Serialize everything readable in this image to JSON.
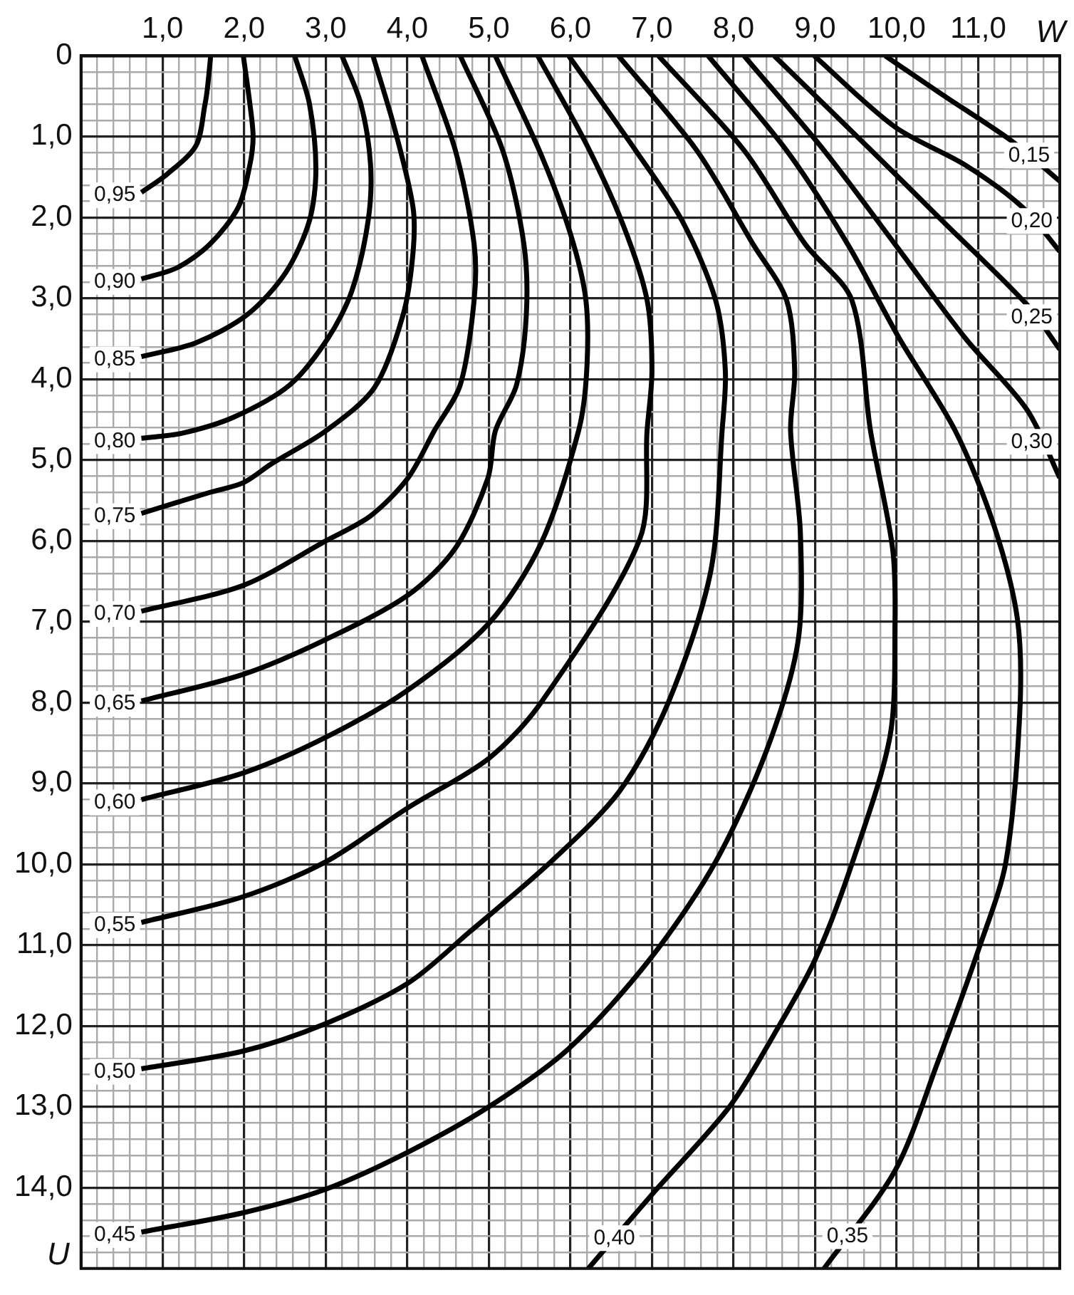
{
  "chart_data": {
    "type": "line",
    "xlabel": "W",
    "ylabel": "U",
    "xlim": [
      0,
      12
    ],
    "ylim": [
      15,
      0
    ],
    "grid": true,
    "legend": false,
    "marker": "none",
    "line_style": "solid",
    "xticks": [
      {
        "value": 0,
        "label": null
      },
      {
        "value": 0.2,
        "label": null
      },
      {
        "value": 0.4,
        "label": null
      },
      {
        "value": 0.6,
        "label": null
      },
      {
        "value": 0.8,
        "label": null
      },
      {
        "value": 1,
        "label": "1,0"
      },
      {
        "value": 1.2,
        "label": null
      },
      {
        "value": 1.4,
        "label": null
      },
      {
        "value": 1.6,
        "label": null
      },
      {
        "value": 1.8,
        "label": null
      },
      {
        "value": 2,
        "label": "2,0"
      },
      {
        "value": 2.2,
        "label": null
      },
      {
        "value": 2.4,
        "label": null
      },
      {
        "value": 2.6,
        "label": null
      },
      {
        "value": 2.8,
        "label": null
      },
      {
        "value": 3,
        "label": "3,0"
      },
      {
        "value": 3.2,
        "label": null
      },
      {
        "value": 3.4,
        "label": null
      },
      {
        "value": 3.6,
        "label": null
      },
      {
        "value": 3.8,
        "label": null
      },
      {
        "value": 4,
        "label": "4,0"
      },
      {
        "value": 4.2,
        "label": null
      },
      {
        "value": 4.4,
        "label": null
      },
      {
        "value": 4.6,
        "label": null
      },
      {
        "value": 4.8,
        "label": null
      },
      {
        "value": 5,
        "label": "5,0"
      },
      {
        "value": 5.2,
        "label": null
      },
      {
        "value": 5.4,
        "label": null
      },
      {
        "value": 5.6,
        "label": null
      },
      {
        "value": 5.8,
        "label": null
      },
      {
        "value": 6,
        "label": "6,0"
      },
      {
        "value": 6.2,
        "label": null
      },
      {
        "value": 6.4,
        "label": null
      },
      {
        "value": 6.6,
        "label": null
      },
      {
        "value": 6.8,
        "label": null
      },
      {
        "value": 7,
        "label": "7,0"
      },
      {
        "value": 7.2,
        "label": null
      },
      {
        "value": 7.4,
        "label": null
      },
      {
        "value": 7.6,
        "label": null
      },
      {
        "value": 7.8,
        "label": null
      },
      {
        "value": 8,
        "label": "8,0"
      },
      {
        "value": 8.2,
        "label": null
      },
      {
        "value": 8.4,
        "label": null
      },
      {
        "value": 8.6,
        "label": null
      },
      {
        "value": 8.8,
        "label": null
      },
      {
        "value": 9,
        "label": "9,0"
      },
      {
        "value": 9.2,
        "label": null
      },
      {
        "value": 9.4,
        "label": null
      },
      {
        "value": 9.6,
        "label": null
      },
      {
        "value": 9.8,
        "label": null
      },
      {
        "value": 10,
        "label": "10,0"
      },
      {
        "value": 10.2,
        "label": null
      },
      {
        "value": 10.4,
        "label": null
      },
      {
        "value": 10.6,
        "label": null
      },
      {
        "value": 10.8,
        "label": null
      },
      {
        "value": 11,
        "label": "11,0"
      },
      {
        "value": 11.2,
        "label": null
      },
      {
        "value": 11.4,
        "label": null
      },
      {
        "value": 11.6,
        "label": null
      },
      {
        "value": 11.8,
        "label": null
      },
      {
        "value": 12,
        "label": null
      }
    ],
    "yticks": [
      {
        "value": 0,
        "label": "0"
      },
      {
        "value": 0.2,
        "label": null
      },
      {
        "value": 0.4,
        "label": null
      },
      {
        "value": 0.6,
        "label": null
      },
      {
        "value": 0.8,
        "label": null
      },
      {
        "value": 1,
        "label": "1,0"
      },
      {
        "value": 1.2,
        "label": null
      },
      {
        "value": 1.4,
        "label": null
      },
      {
        "value": 1.6,
        "label": null
      },
      {
        "value": 1.8,
        "label": null
      },
      {
        "value": 2,
        "label": "2,0"
      },
      {
        "value": 2.2,
        "label": null
      },
      {
        "value": 2.4,
        "label": null
      },
      {
        "value": 2.6,
        "label": null
      },
      {
        "value": 2.8,
        "label": null
      },
      {
        "value": 3,
        "label": "3,0"
      },
      {
        "value": 3.2,
        "label": null
      },
      {
        "value": 3.4,
        "label": null
      },
      {
        "value": 3.6,
        "label": null
      },
      {
        "value": 3.8,
        "label": null
      },
      {
        "value": 4,
        "label": "4,0"
      },
      {
        "value": 4.2,
        "label": null
      },
      {
        "value": 4.4,
        "label": null
      },
      {
        "value": 4.6,
        "label": null
      },
      {
        "value": 4.8,
        "label": null
      },
      {
        "value": 5,
        "label": "5,0"
      },
      {
        "value": 5.2,
        "label": null
      },
      {
        "value": 5.4,
        "label": null
      },
      {
        "value": 5.6,
        "label": null
      },
      {
        "value": 5.8,
        "label": null
      },
      {
        "value": 6,
        "label": "6,0"
      },
      {
        "value": 6.2,
        "label": null
      },
      {
        "value": 6.4,
        "label": null
      },
      {
        "value": 6.6,
        "label": null
      },
      {
        "value": 6.8,
        "label": null
      },
      {
        "value": 7,
        "label": "7,0"
      },
      {
        "value": 7.2,
        "label": null
      },
      {
        "value": 7.4,
        "label": null
      },
      {
        "value": 7.6,
        "label": null
      },
      {
        "value": 7.8,
        "label": null
      },
      {
        "value": 8,
        "label": "8,0"
      },
      {
        "value": 8.2,
        "label": null
      },
      {
        "value": 8.4,
        "label": null
      },
      {
        "value": 8.6,
        "label": null
      },
      {
        "value": 8.8,
        "label": null
      },
      {
        "value": 9,
        "label": "9,0"
      },
      {
        "value": 9.2,
        "label": null
      },
      {
        "value": 9.4,
        "label": null
      },
      {
        "value": 9.6,
        "label": null
      },
      {
        "value": 9.8,
        "label": null
      },
      {
        "value": 10,
        "label": "10,0"
      },
      {
        "value": 10.2,
        "label": null
      },
      {
        "value": 10.4,
        "label": null
      },
      {
        "value": 10.6,
        "label": null
      },
      {
        "value": 10.8,
        "label": null
      },
      {
        "value": 11,
        "label": "11,0"
      },
      {
        "value": 11.2,
        "label": null
      },
      {
        "value": 11.4,
        "label": null
      },
      {
        "value": 11.6,
        "label": null
      },
      {
        "value": 11.8,
        "label": null
      },
      {
        "value": 12,
        "label": "12,0"
      },
      {
        "value": 12.2,
        "label": null
      },
      {
        "value": 12.4,
        "label": null
      },
      {
        "value": 12.6,
        "label": null
      },
      {
        "value": 12.8,
        "label": null
      },
      {
        "value": 13,
        "label": "13,0"
      },
      {
        "value": 13.2,
        "label": null
      },
      {
        "value": 13.4,
        "label": null
      },
      {
        "value": 13.6,
        "label": null
      },
      {
        "value": 13.8,
        "label": null
      },
      {
        "value": 14,
        "label": "14,0"
      },
      {
        "value": 14.2,
        "label": null
      },
      {
        "value": 14.4,
        "label": null
      },
      {
        "value": 14.6,
        "label": null
      },
      {
        "value": 14.8,
        "label": null
      },
      {
        "value": 15,
        "label": null
      }
    ],
    "series": [
      {
        "name": "0,95",
        "color": "#000000",
        "x": [
          1.59,
          1.55,
          1.52,
          1.41,
          1.06,
          0.74
        ],
        "values": [
          0,
          0.4,
          0.6,
          1.11,
          1.46,
          1.69
        ]
      },
      {
        "name": "0,90",
        "color": "#000000",
        "x": [
          1.99,
          2.07,
          2.11,
          2.07,
          1.93,
          1.58,
          1.18,
          0.74
        ],
        "values": [
          0,
          0.59,
          1.0,
          1.35,
          1.87,
          2.33,
          2.62,
          2.76
        ]
      },
      {
        "name": "0,85",
        "color": "#000000",
        "x": [
          2.62,
          2.8,
          2.88,
          2.8,
          2.51,
          2.04,
          1.41,
          0.74
        ],
        "values": [
          0,
          0.59,
          1.4,
          2.04,
          2.68,
          3.2,
          3.55,
          3.72
        ]
      },
      {
        "name": "0,80",
        "color": "#000000",
        "x": [
          3.2,
          3.43,
          3.55,
          3.52,
          3.32,
          3.03,
          2.56,
          1.87,
          1.23,
          0.74
        ],
        "values": [
          0,
          0.59,
          1.35,
          2.04,
          2.91,
          3.49,
          4.07,
          4.47,
          4.67,
          4.73
        ]
      },
      {
        "name": "0,75",
        "color": "#000000",
        "x": [
          3.58,
          3.84,
          4.07,
          4.07,
          3.95,
          3.6,
          3.0,
          2.33,
          1.99,
          1.58,
          0.74
        ],
        "values": [
          0,
          0.88,
          1.87,
          2.44,
          3.2,
          4.1,
          4.64,
          5.05,
          5.28,
          5.4,
          5.66
        ]
      },
      {
        "name": "0,70",
        "color": "#000000",
        "x": [
          4.18,
          4.59,
          4.82,
          4.82,
          4.65,
          4.33,
          4.01,
          3.55,
          3.0,
          1.99,
          0.74
        ],
        "values": [
          0,
          1.17,
          2.33,
          3.02,
          4.07,
          4.64,
          5.22,
          5.69,
          6.0,
          6.55,
          6.87
        ]
      },
      {
        "name": "0,65",
        "color": "#000000",
        "x": [
          4.65,
          5.17,
          5.43,
          5.46,
          5.34,
          5.08,
          4.99,
          4.59,
          4.01,
          3.0,
          1.99,
          0.74
        ],
        "values": [
          0,
          1.17,
          2.33,
          3.2,
          4.07,
          4.64,
          5.22,
          6.09,
          6.67,
          7.22,
          7.65,
          7.98
        ]
      },
      {
        "name": "0,60",
        "color": "#000000",
        "x": [
          5.08,
          5.64,
          6.0,
          6.19,
          6.2,
          6.1,
          5.64,
          5.0,
          4.0,
          3.0,
          1.99,
          0.74
        ],
        "values": [
          0,
          1.22,
          2.2,
          3.02,
          3.9,
          4.64,
          6.03,
          7.02,
          7.85,
          8.43,
          8.87,
          9.2
        ]
      },
      {
        "name": "0,55",
        "color": "#000000",
        "x": [
          5.6,
          6.2,
          6.65,
          6.94,
          7.0,
          6.94,
          6.85,
          5.64,
          5.0,
          4.01,
          3.0,
          1.99,
          0.74
        ],
        "values": [
          0,
          1.1,
          2.1,
          3.02,
          3.9,
          4.64,
          5.98,
          8.0,
          8.69,
          9.3,
          9.97,
          10.4,
          10.72
        ]
      },
      {
        "name": "0,50",
        "color": "#000000",
        "x": [
          5.98,
          6.8,
          7.37,
          7.78,
          7.9,
          7.86,
          7.72,
          7.2,
          6.6,
          5.76,
          4.76,
          4.01,
          3.0,
          1.99,
          0.74
        ],
        "values": [
          0,
          1.17,
          2.04,
          3.02,
          3.9,
          4.64,
          6.38,
          8.0,
          9.1,
          9.97,
          10.84,
          11.47,
          11.97,
          12.31,
          12.53
        ]
      },
      {
        "name": "0,45",
        "color": "#000000",
        "x": [
          6.59,
          7.55,
          8.24,
          8.65,
          8.75,
          8.7,
          8.82,
          8.79,
          8.41,
          7.78,
          6.97,
          5.98,
          5.0,
          4.01,
          3.0,
          1.99,
          0.74
        ],
        "values": [
          0,
          1.17,
          2.33,
          3.02,
          3.9,
          4.64,
          5.9,
          7.25,
          8.58,
          9.97,
          11.18,
          12.28,
          13.0,
          13.56,
          14.02,
          14.31,
          14.55
        ]
      },
      {
        "name": "0,40",
        "color": "#000000",
        "x": [
          7.08,
          8.13,
          8.88,
          9.45,
          9.68,
          9.95,
          9.98,
          9.92,
          9.46,
          9.0,
          8.5,
          7.95,
          7.03,
          6.22
        ],
        "values": [
          0,
          1.17,
          2.33,
          3.02,
          4.64,
          6.09,
          7.0,
          8.41,
          9.97,
          11.18,
          12.1,
          13.0,
          14.05,
          15.0
        ]
      },
      {
        "name": "0,35",
        "color": "#000000",
        "x": [
          7.69,
          8.65,
          9.4,
          10.03,
          10.72,
          11.19,
          11.48,
          11.51,
          11.34,
          11.02,
          10.5,
          9.98,
          9.11
        ],
        "values": [
          0,
          1.17,
          2.33,
          3.49,
          4.64,
          5.8,
          6.96,
          8.12,
          9.97,
          11.01,
          12.46,
          13.79,
          15.0
        ]
      },
      {
        "name": "0,30",
        "color": "#000000",
        "x": [
          8.13,
          9.11,
          9.98,
          10.84,
          11.6,
          12.0
        ],
        "values": [
          0,
          1.17,
          2.33,
          3.49,
          4.38,
          5.22
        ]
      },
      {
        "name": "0,25",
        "color": "#000000",
        "x": [
          8.5,
          9.69,
          10.56,
          11.6,
          12.0
        ],
        "values": [
          0,
          1.17,
          2.04,
          3.08,
          3.63
        ]
      },
      {
        "name": "0,20",
        "color": "#000000",
        "x": [
          8.99,
          9.98,
          10.84,
          11.54,
          12.0
        ],
        "values": [
          0,
          0.88,
          1.35,
          1.87,
          2.42
        ]
      },
      {
        "name": "0,15",
        "color": "#000000",
        "x": [
          9.86,
          10.56,
          11.42,
          12.0
        ],
        "values": [
          0,
          0.48,
          1.06,
          1.55
        ]
      }
    ]
  }
}
